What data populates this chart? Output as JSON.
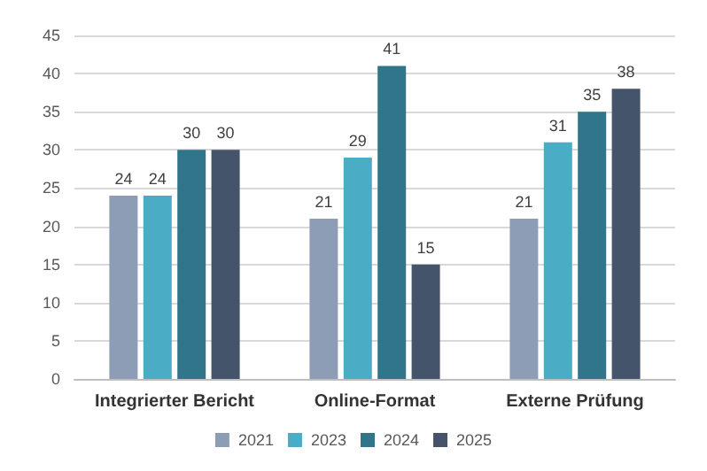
{
  "chart_data": {
    "type": "bar",
    "categories": [
      "Integrierter Bericht",
      "Online-Format",
      "Externe Prüfung"
    ],
    "series": [
      {
        "name": "2021",
        "color": "#8c9db5",
        "values": [
          24,
          21,
          21
        ]
      },
      {
        "name": "2023",
        "color": "#4bacc6",
        "values": [
          24,
          29,
          31
        ]
      },
      {
        "name": "2024",
        "color": "#31758a",
        "values": [
          30,
          41,
          35
        ]
      },
      {
        "name": "2025",
        "color": "#44546a",
        "values": [
          30,
          15,
          38
        ]
      }
    ],
    "ylim": [
      0,
      45
    ],
    "yticks": [
      0,
      5,
      10,
      15,
      20,
      25,
      30,
      35,
      40,
      45
    ],
    "grid": "y",
    "legend": "bottom",
    "data_labels": true
  }
}
